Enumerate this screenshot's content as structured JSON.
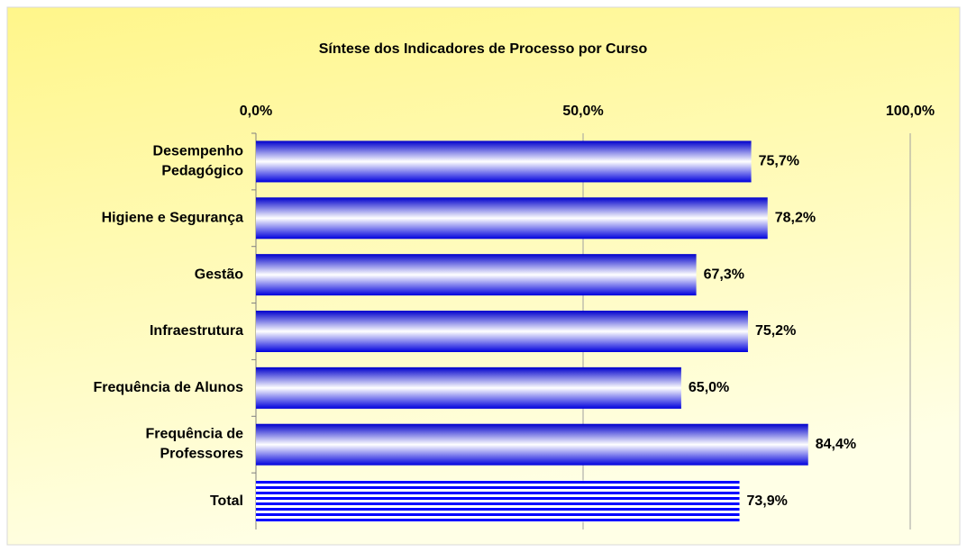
{
  "chart_data": {
    "type": "hbar",
    "title": "Síntese dos Indicadores de Processo por Curso",
    "categories": [
      "Desempenho\nPedagógico",
      "Higiene e Segurança",
      "Gestão",
      "Infraestrutura",
      "Frequência de Alunos",
      "Frequência de\nProfessores",
      "Total"
    ],
    "values": [
      75.7,
      78.2,
      67.3,
      75.2,
      65.0,
      84.4,
      73.9
    ],
    "value_labels": [
      "75,7%",
      "78,2%",
      "67,3%",
      "75,2%",
      "65,0%",
      "84,4%",
      "73,9%"
    ],
    "color": "#0000ff",
    "xlim": [
      0,
      100
    ],
    "xticks": [
      {
        "value": 0,
        "label": "0,0%"
      },
      {
        "value": 50,
        "label": "50,0%"
      },
      {
        "value": 100,
        "label": "100,0%"
      }
    ],
    "grid": true
  }
}
